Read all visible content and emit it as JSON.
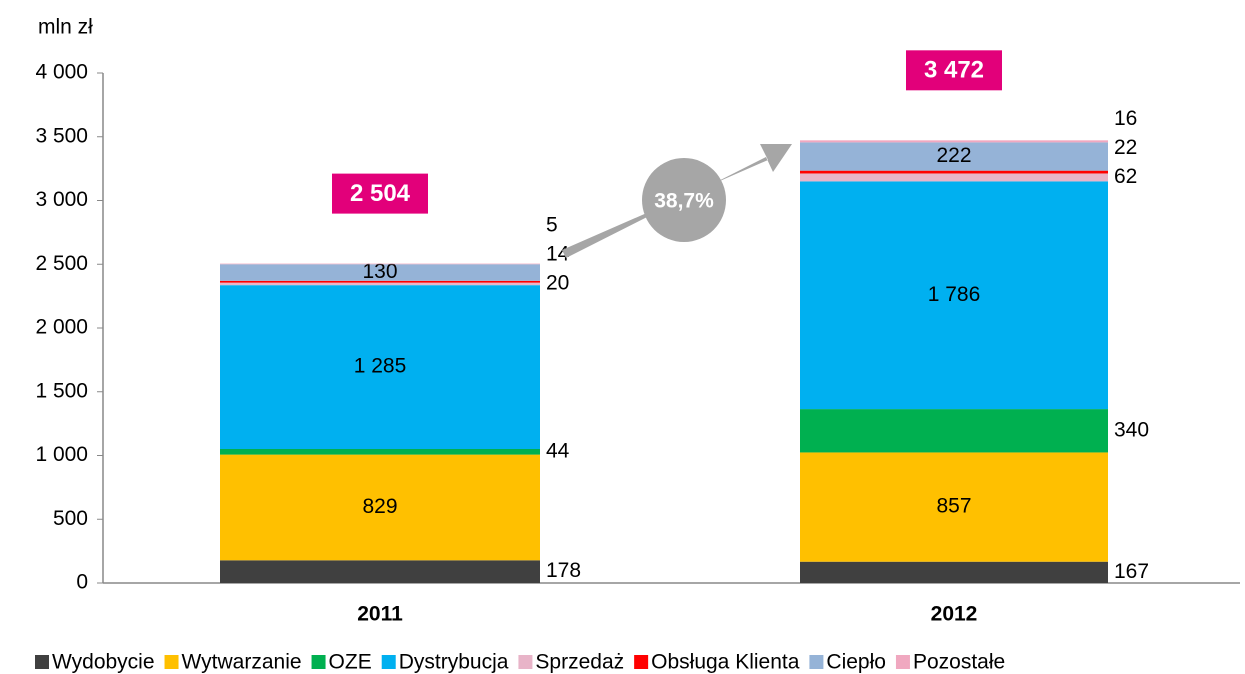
{
  "chart_data": {
    "type": "stacked_bar",
    "y_label": "mln zł",
    "categories": [
      "2011",
      "2012"
    ],
    "series": [
      {
        "name": "Wydobycie",
        "color": "#404040",
        "values": [
          178,
          167
        ]
      },
      {
        "name": "Wytwarzanie",
        "color": "#ffc000",
        "values": [
          829,
          857
        ]
      },
      {
        "name": "OZE",
        "color": "#00b050",
        "values": [
          44,
          340
        ]
      },
      {
        "name": "Dystrybucja",
        "color": "#00b0f0",
        "values": [
          1285,
          1786
        ],
        "value_labels": [
          "1 285",
          "1 786"
        ]
      },
      {
        "name": "Sprzedaż",
        "color": "#e8b4c8",
        "values": [
          20,
          62
        ]
      },
      {
        "name": "Obsługa Klienta",
        "color": "#ff0000",
        "values": [
          14,
          22
        ]
      },
      {
        "name": "Ciepło",
        "color": "#95b3d7",
        "values": [
          130,
          222
        ]
      },
      {
        "name": "Pozostałe",
        "color": "#f0a8c0",
        "values": [
          5,
          16
        ]
      }
    ],
    "totals": [
      2504,
      3472
    ],
    "total_labels": [
      "2 504",
      "3 472"
    ],
    "total_color": "#e2007a",
    "annotation": "38,7%",
    "ylim": [
      0,
      4000
    ],
    "yticks": [
      0,
      500,
      {
        "value": 1000,
        "label": "1 000"
      },
      {
        "value": 1500,
        "label": "1 500"
      },
      {
        "value": 2000,
        "label": "2 000"
      },
      {
        "value": 2500,
        "label": "2 500"
      },
      {
        "value": 3000,
        "label": "3 000"
      },
      {
        "value": 3500,
        "label": "3 500"
      },
      {
        "value": 4000,
        "label": "4 000"
      }
    ],
    "legend": "bottom"
  }
}
